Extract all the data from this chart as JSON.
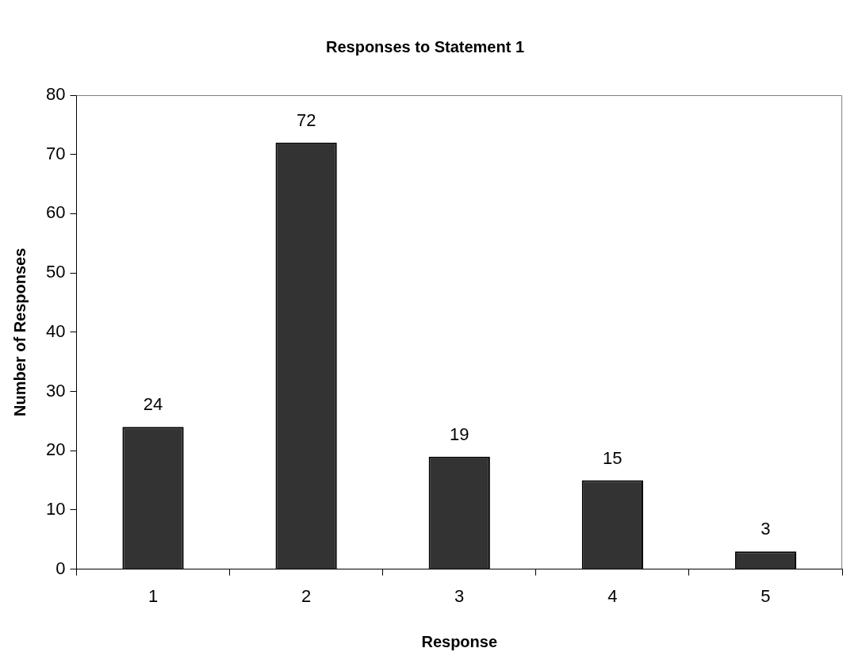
{
  "chart_data": {
    "type": "bar",
    "title": "Responses to Statement 1",
    "xlabel": "Response",
    "ylabel": "Number of Responses",
    "categories": [
      "1",
      "2",
      "3",
      "4",
      "5"
    ],
    "values": [
      24,
      72,
      19,
      15,
      3
    ],
    "color": "#333333",
    "ylim": [
      0,
      80
    ],
    "yticks": [
      0,
      10,
      20,
      30,
      40,
      50,
      60,
      70,
      80
    ],
    "grid": false,
    "data_labels": true,
    "legend": false
  }
}
